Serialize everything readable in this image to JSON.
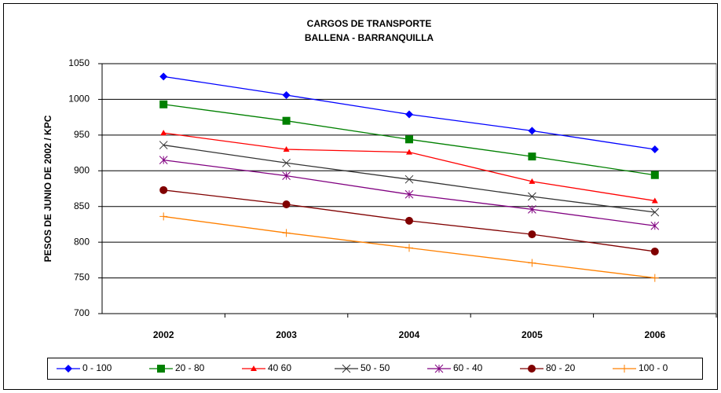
{
  "chart_data": {
    "type": "line",
    "title": "CARGOS DE TRANSPORTE",
    "subtitle": "BALLENA - BARRANQUILLA",
    "y_label": "PESOS DE JUNIO DE 2002  / KPC",
    "categories": [
      "2002",
      "2003",
      "2004",
      "2005",
      "2006"
    ],
    "ylim": [
      700,
      1050
    ],
    "yticks": [
      700,
      750,
      800,
      850,
      900,
      950,
      1000,
      1050
    ],
    "grid": true,
    "legend": "bottom",
    "series": [
      {
        "name": "0 - 100",
        "color": "#0000ff",
        "marker": "diamond",
        "values": [
          1032,
          1006,
          979,
          956,
          930
        ]
      },
      {
        "name": "20 - 80",
        "color": "#008000",
        "marker": "square",
        "values": [
          993,
          970,
          944,
          920,
          894
        ]
      },
      {
        "name": "40 60",
        "color": "#ff0000",
        "marker": "triangle",
        "values": [
          953,
          930,
          926,
          885,
          858
        ]
      },
      {
        "name": "50 - 50",
        "color": "#333333",
        "marker": "x",
        "values": [
          936,
          911,
          888,
          864,
          842
        ]
      },
      {
        "name": "60 - 40",
        "color": "#800080",
        "marker": "star",
        "values": [
          915,
          893,
          867,
          846,
          823
        ]
      },
      {
        "name": "80 - 20",
        "color": "#800000",
        "marker": "circle",
        "values": [
          873,
          853,
          830,
          811,
          787
        ]
      },
      {
        "name": "100 - 0",
        "color": "#ff8000",
        "marker": "plus",
        "values": [
          836,
          813,
          792,
          771,
          750
        ]
      }
    ]
  }
}
